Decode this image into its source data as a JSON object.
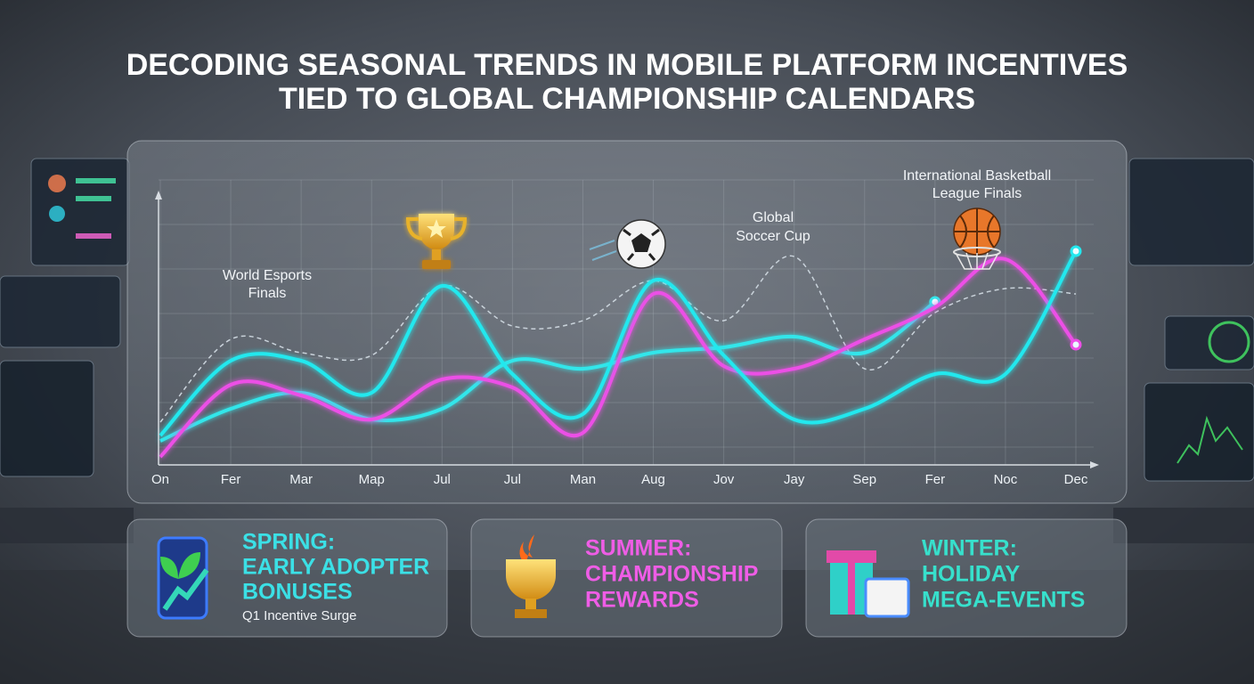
{
  "title": [
    "DECODING SEASONAL TRENDS IN MOBILE PLATFORM INCENTIVES",
    "TIED TO GLOBAL CHAMPIONSHIP CALENDARS"
  ],
  "chart_data": {
    "type": "line",
    "categories": [
      "On",
      "Fer",
      "Mar",
      "Map",
      "Jul",
      "Jul",
      "Man",
      "Aug",
      "Jov",
      "Jay",
      "Sep",
      "Fer",
      "Noc",
      "Dec"
    ],
    "ylim": [
      0,
      100
    ],
    "grid": true,
    "annotations": [
      [
        "World Esports",
        "Finals"
      ],
      [
        "Global",
        "Soccer Cup"
      ],
      [
        "International Basketball",
        "League Finals"
      ]
    ],
    "series": [
      {
        "color": "#c9d2da",
        "dashed": true,
        "values": [
          16,
          47,
          42,
          41,
          67,
          52,
          54,
          69,
          54,
          78,
          36,
          57,
          66,
          64
        ]
      },
      {
        "color": "#33e6ea",
        "values": [
          9,
          21,
          27,
          17,
          21,
          39,
          36,
          42,
          44,
          48,
          42,
          61,
          null,
          null
        ]
      },
      {
        "color": "#ec4fe6",
        "values": [
          3,
          30,
          26,
          17,
          32,
          29,
          12,
          64,
          37,
          36,
          47,
          59,
          77,
          45
        ]
      },
      {
        "color": "#22e8ee",
        "values": [
          11,
          39,
          39,
          27,
          67,
          34,
          19,
          69,
          41,
          17,
          21,
          34,
          34,
          80
        ]
      }
    ]
  },
  "cards": [
    {
      "title": [
        "SPRING:",
        "EARLY ADOPTER",
        "BONUSES"
      ],
      "subtitle": "Q1 Incentive Surge"
    },
    {
      "title": [
        "SUMMER:",
        "CHAMPIONSHIP",
        "REWARDS"
      ]
    },
    {
      "title": [
        "WINTER:",
        "HOLIDAY",
        "MEGA-EVENTS"
      ]
    }
  ]
}
